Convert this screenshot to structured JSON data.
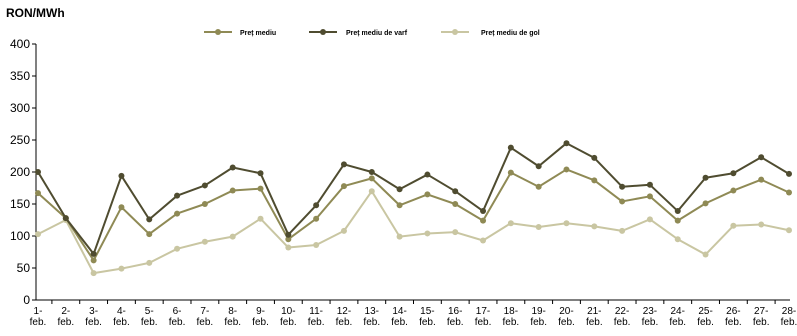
{
  "chart_data": {
    "type": "line",
    "unit_label": "RON/MWh",
    "ylim": [
      0,
      400
    ],
    "yticks": [
      0,
      50,
      100,
      150,
      200,
      250,
      300,
      350,
      400
    ],
    "grid": false,
    "legend_position": "top",
    "categories": [
      "1-feb.",
      "2-feb.",
      "3-feb.",
      "4-feb.",
      "5-feb.",
      "6-feb.",
      "7-feb.",
      "8-feb.",
      "9-feb.",
      "10-feb.",
      "11-feb.",
      "12-feb.",
      "13-feb.",
      "14-feb.",
      "15-feb.",
      "16-feb.",
      "17-feb.",
      "18-feb.",
      "19-feb.",
      "20-feb.",
      "21-feb.",
      "22-feb.",
      "23-feb.",
      "24-feb.",
      "25-feb.",
      "26-feb.",
      "27-feb.",
      "28-feb."
    ],
    "category_lines": [
      [
        "1-",
        "feb."
      ],
      [
        "2-",
        "feb."
      ],
      [
        "3-",
        "feb."
      ],
      [
        "4-",
        "feb."
      ],
      [
        "5-",
        "feb."
      ],
      [
        "6-",
        "feb."
      ],
      [
        "7-",
        "feb."
      ],
      [
        "8-",
        "feb."
      ],
      [
        "9-",
        "feb."
      ],
      [
        "10-",
        "feb."
      ],
      [
        "11-",
        "feb."
      ],
      [
        "12-",
        "feb."
      ],
      [
        "13-",
        "feb."
      ],
      [
        "14-",
        "feb."
      ],
      [
        "15-",
        "feb."
      ],
      [
        "16-",
        "feb."
      ],
      [
        "17-",
        "feb."
      ],
      [
        "18-",
        "feb."
      ],
      [
        "19-",
        "feb."
      ],
      [
        "20-",
        "feb."
      ],
      [
        "21-",
        "feb."
      ],
      [
        "22-",
        "feb."
      ],
      [
        "23-",
        "feb."
      ],
      [
        "24-",
        "feb."
      ],
      [
        "25-",
        "feb."
      ],
      [
        "26-",
        "feb."
      ],
      [
        "27-",
        "feb."
      ],
      [
        "28-",
        "feb."
      ]
    ],
    "series": [
      {
        "name": "Preț mediu",
        "color": "#8f8a55",
        "values": [
          167,
          128,
          62,
          145,
          103,
          135,
          150,
          171,
          174,
          95,
          127,
          178,
          190,
          148,
          165,
          150,
          124,
          199,
          177,
          204,
          187,
          154,
          162,
          124,
          151,
          171,
          188,
          168
        ]
      },
      {
        "name": "Preț mediu de varf",
        "color": "#4f4c30",
        "values": [
          200,
          128,
          72,
          194,
          126,
          163,
          179,
          207,
          198,
          102,
          148,
          212,
          200,
          173,
          196,
          170,
          139,
          238,
          209,
          245,
          222,
          177,
          180,
          139,
          191,
          198,
          223,
          197
        ]
      },
      {
        "name": "Preț mediu de gol",
        "color": "#c9c6a2",
        "values": [
          103,
          125,
          42,
          49,
          58,
          80,
          91,
          99,
          127,
          82,
          86,
          108,
          170,
          99,
          104,
          106,
          93,
          120,
          114,
          120,
          115,
          108,
          126,
          95,
          71,
          116,
          118,
          109
        ]
      }
    ]
  }
}
